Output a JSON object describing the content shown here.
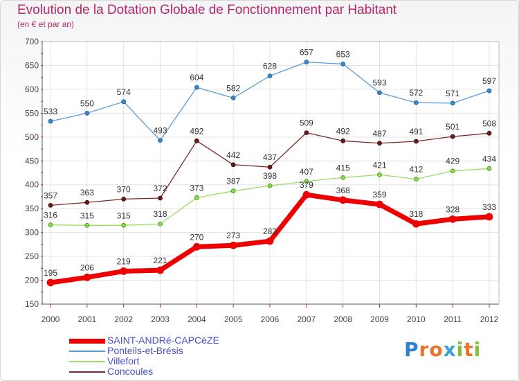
{
  "header": {
    "title": "Evolution de la Dotation Globale de Fonctionnement par Habitant",
    "subtitle": "(en € et par an)"
  },
  "logo": {
    "text": "Proxiti",
    "letters": [
      "P",
      "r",
      "o",
      "x",
      "i",
      "t",
      "i"
    ],
    "colors": [
      "#2f7fd3",
      "#e8742a",
      "#e8742a",
      "#3aa0d6",
      "#7cbf3a",
      "#e8742a",
      "#7cbf3a"
    ]
  },
  "chart_data": {
    "type": "line",
    "x": [
      "2000",
      "2001",
      "2002",
      "2003",
      "2004",
      "2005",
      "2006",
      "2007",
      "2008",
      "2009",
      "2010",
      "2011",
      "2012"
    ],
    "ylim": [
      150,
      700
    ],
    "yticks": [
      "150",
      "200",
      "250",
      "300",
      "350",
      "400",
      "450",
      "500",
      "550",
      "600",
      "650",
      "700"
    ],
    "grid": true,
    "legend_position": "bottom-left",
    "series": [
      {
        "name": "SAINT-ANDRé-CAPCèZE",
        "color": "#ee0000",
        "values": [
          195,
          206,
          219,
          221,
          270,
          273,
          282,
          379,
          368,
          359,
          318,
          328,
          333
        ]
      },
      {
        "name": "Ponteils-et-Brésis",
        "color": "#5b9bd5",
        "values": [
          533,
          550,
          574,
          493,
          604,
          582,
          628,
          657,
          653,
          593,
          572,
          571,
          597
        ]
      },
      {
        "name": "Villefort",
        "color": "#99dd66",
        "values": [
          316,
          315,
          315,
          318,
          373,
          387,
          398,
          407,
          415,
          421,
          412,
          429,
          434
        ]
      },
      {
        "name": "Concoules",
        "color": "#7a2a2a",
        "values": [
          357,
          363,
          370,
          372,
          492,
          442,
          437,
          509,
          492,
          487,
          491,
          501,
          508
        ]
      }
    ]
  }
}
